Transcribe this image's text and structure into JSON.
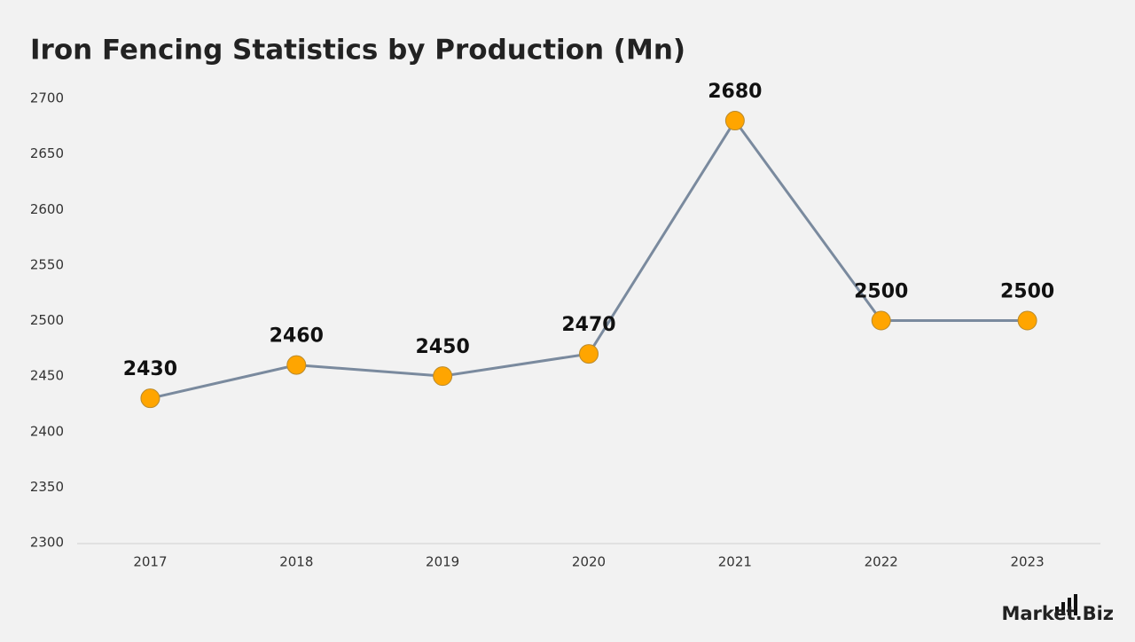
{
  "chart_data": {
    "type": "line",
    "title": "Iron Fencing Statistics by Production (Mn)",
    "categories": [
      "2017",
      "2018",
      "2019",
      "2020",
      "2021",
      "2022",
      "2023"
    ],
    "values": [
      2430,
      2460,
      2450,
      2470,
      2680,
      2500,
      2500
    ],
    "line_color": "#7a8a9e",
    "marker_color": "#ffa500",
    "ylim": [
      2300,
      2700
    ],
    "yticks": [
      2300,
      2350,
      2400,
      2450,
      2500,
      2550,
      2600,
      2650,
      2700
    ],
    "grid": false,
    "data_labels": true
  },
  "brand": "Market.Biz"
}
